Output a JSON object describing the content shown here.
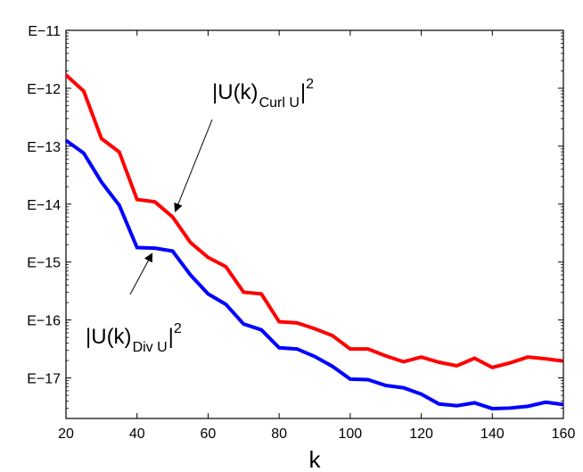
{
  "chart_data": {
    "type": "line",
    "title": "",
    "xlabel": "k",
    "ylabel": "",
    "x": [
      20,
      25,
      30,
      35,
      40,
      45,
      50,
      55,
      60,
      65,
      70,
      75,
      80,
      85,
      90,
      95,
      100,
      105,
      110,
      115,
      120,
      125,
      130,
      135,
      140,
      145,
      150,
      155,
      160
    ],
    "xlim": [
      20,
      160
    ],
    "ylim": [
      -17.7,
      -11
    ],
    "yscale": "log10",
    "xticks": [
      20,
      40,
      60,
      80,
      100,
      120,
      140,
      160
    ],
    "xtick_labels": [
      "20",
      "40",
      "60",
      "80",
      "100",
      "120",
      "140",
      "160"
    ],
    "yticks": [
      -17,
      -16,
      -15,
      -14,
      -13,
      -12,
      -11
    ],
    "ytick_labels": [
      "E−17",
      "E−16",
      "E−15",
      "E−14",
      "E−13",
      "E−12",
      "E−11"
    ],
    "grid": false,
    "series": [
      {
        "name": "|U(k)_Curl U|^2",
        "color": "#ff0000",
        "values": [
          -11.77,
          -12.05,
          -12.87,
          -13.1,
          -13.92,
          -13.96,
          -14.22,
          -14.66,
          -14.92,
          -15.08,
          -15.52,
          -15.55,
          -16.03,
          -16.05,
          -16.15,
          -16.27,
          -16.5,
          -16.5,
          -16.62,
          -16.72,
          -16.64,
          -16.73,
          -16.79,
          -16.66,
          -16.82,
          -16.74,
          -16.64,
          -16.67,
          -16.71
        ]
      },
      {
        "name": "|U(k)_Div U|^2",
        "color": "#0000ff",
        "values": [
          -12.9,
          -13.12,
          -13.62,
          -14.02,
          -14.75,
          -14.76,
          -14.81,
          -15.22,
          -15.55,
          -15.73,
          -16.07,
          -16.17,
          -16.48,
          -16.5,
          -16.63,
          -16.8,
          -17.02,
          -17.03,
          -17.13,
          -17.17,
          -17.28,
          -17.45,
          -17.48,
          -17.43,
          -17.53,
          -17.52,
          -17.49,
          -17.42,
          -17.46
        ]
      }
    ],
    "annotations": [
      {
        "series": "Curl",
        "text_main": "|U(k)",
        "text_sub": "Curl U",
        "text_sup": "2",
        "points_to_x": 50
      },
      {
        "series": "Div",
        "text_main": "|U(k)",
        "text_sub": "Div U",
        "text_sup": "2",
        "points_to_x": 45
      }
    ]
  }
}
